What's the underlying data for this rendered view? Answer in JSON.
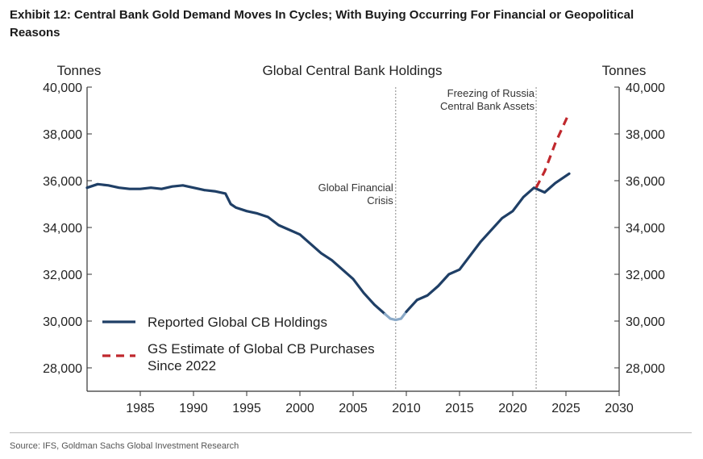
{
  "exhibit_title": "Exhibit 12: Central Bank Gold Demand Moves In Cycles; With Buying Occurring For Financial or Geopolitical Reasons",
  "source": "Source: IFS, Goldman Sachs Global Investment Research",
  "colors": {
    "reported": "#1f3f66",
    "reported_light": "#8aa9c7",
    "estimate": "#c0282d",
    "axis": "#333333",
    "vline": "#888888"
  },
  "chart_data": {
    "type": "line",
    "title": "Global Central Bank Holdings",
    "left_axis_label": "Tonnes",
    "right_axis_label": "Tonnes",
    "xlim": [
      1980,
      2030
    ],
    "ylim": [
      27000,
      40000
    ],
    "x_ticks": [
      1985,
      1990,
      1995,
      2000,
      2005,
      2010,
      2015,
      2020,
      2025,
      2030
    ],
    "x_tick_labels": [
      "1985",
      "1990",
      "1995",
      "2000",
      "2005",
      "2010",
      "2015",
      "2020",
      "2025",
      "2030"
    ],
    "y_ticks": [
      28000,
      30000,
      32000,
      34000,
      36000,
      38000,
      40000
    ],
    "y_tick_labels": [
      "28,000",
      "30,000",
      "32,000",
      "34,000",
      "36,000",
      "38,000",
      "40,000"
    ],
    "grid": false,
    "legend_position": "bottom-left",
    "annotations": [
      {
        "text_lines": [
          "Global Financial",
          "Crisis"
        ],
        "x": 2009
      },
      {
        "text_lines": [
          "Freezing of Russia",
          "Central Bank Assets"
        ],
        "x": 2022.2
      }
    ],
    "series": [
      {
        "name": "Reported Global CB Holdings",
        "style": "solid",
        "x": [
          1980,
          1981,
          1982,
          1983,
          1984,
          1985,
          1986,
          1987,
          1988,
          1989,
          1990,
          1991,
          1992,
          1993,
          1993.5,
          1994,
          1995,
          1996,
          1997,
          1998,
          1999,
          2000,
          2001,
          2002,
          2003,
          2004,
          2005,
          2006,
          2007,
          2007.5,
          2008
        ],
        "values": [
          35700,
          35850,
          35800,
          35700,
          35650,
          35650,
          35700,
          35650,
          35750,
          35800,
          35700,
          35600,
          35550,
          35450,
          35000,
          34850,
          34700,
          34600,
          34450,
          34100,
          33900,
          33700,
          33300,
          32900,
          32600,
          32200,
          31800,
          31200,
          30700,
          30500,
          30300
        ]
      },
      {
        "name": "",
        "style": "solid-light",
        "x": [
          2008,
          2008.5,
          2009,
          2009.5,
          2010
        ],
        "values": [
          30300,
          30100,
          30050,
          30100,
          30400
        ]
      },
      {
        "name": "",
        "style": "solid",
        "x": [
          2010,
          2011,
          2012,
          2013,
          2014,
          2015,
          2016,
          2017,
          2018,
          2019,
          2020,
          2021,
          2022,
          2023,
          2024,
          2025.3
        ],
        "values": [
          30400,
          30900,
          31100,
          31500,
          32000,
          32200,
          32800,
          33400,
          33900,
          34400,
          34700,
          35300,
          35700,
          35500,
          35900,
          36300
        ]
      },
      {
        "name": "GS Estimate of Global CB Purchases Since 2022",
        "style": "dashed",
        "x": [
          2022.2,
          2023,
          2024,
          2025.3
        ],
        "values": [
          35700,
          36400,
          37600,
          38900
        ]
      }
    ],
    "legend": [
      {
        "label": "Reported Global CB Holdings",
        "style": "solid"
      },
      {
        "label_lines": [
          "GS Estimate of Global CB Purchases",
          "Since 2022"
        ],
        "style": "dashed"
      }
    ]
  }
}
